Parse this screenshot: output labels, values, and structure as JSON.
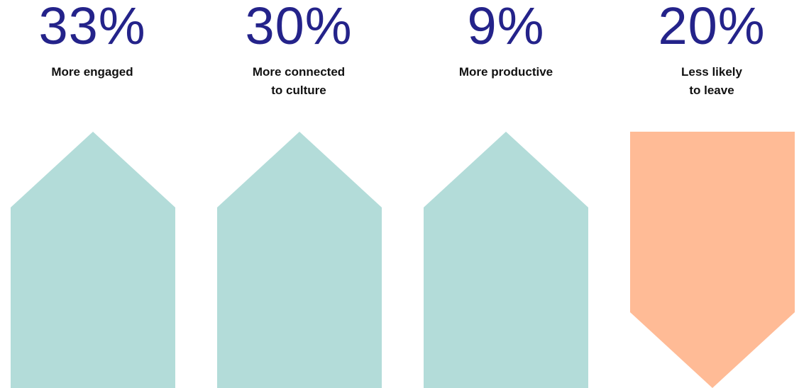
{
  "colors": {
    "value_text": "#24238a",
    "up_arrow": "#b3dcd9",
    "down_arrow": "#ffbb96"
  },
  "stats": [
    {
      "value": "33%",
      "label": "More engaged",
      "direction": "up",
      "icon": "up-arrow-shape"
    },
    {
      "value": "30%",
      "label": "More connected\nto culture",
      "direction": "up",
      "icon": "up-arrow-shape"
    },
    {
      "value": "9%",
      "label": "More productive",
      "direction": "up",
      "icon": "up-arrow-shape"
    },
    {
      "value": "20%",
      "label": "Less likely\nto leave",
      "direction": "down",
      "icon": "down-arrow-shape"
    }
  ]
}
